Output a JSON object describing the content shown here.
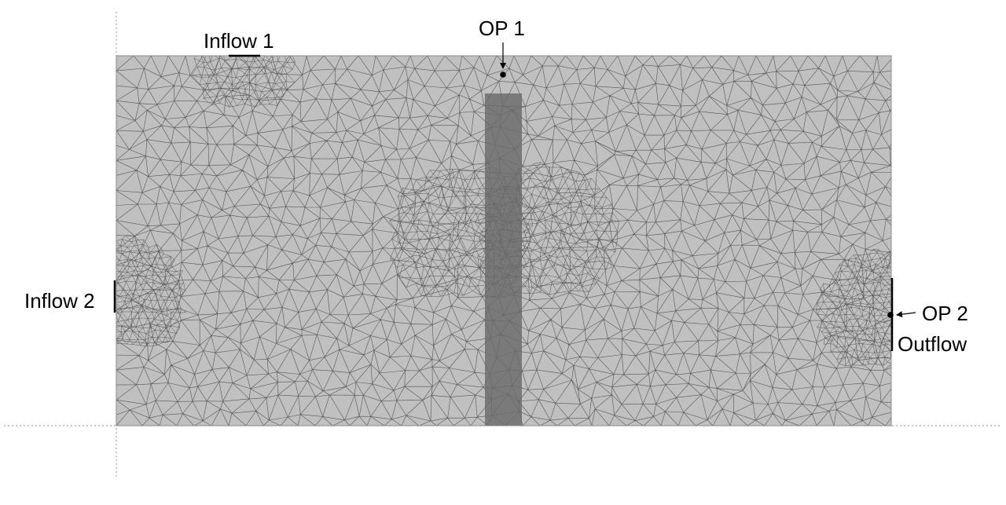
{
  "diagram": {
    "labels": {
      "inflow1": "Inflow 1",
      "inflow2": "Inflow 2",
      "op1": "OP 1",
      "op2": "OP 2",
      "outflow": "Outflow"
    },
    "colors": {
      "background": "#ffffff",
      "domain_fill": "#c0c0c0",
      "mesh_line": "#555555",
      "obstacle_fill": "#6a6a6a",
      "boundary_marker": "#000000",
      "axis_dotted": "#a8a8a8"
    },
    "elements": {
      "mesh": "triangular-mesh",
      "obstacle": "rectangular-obstacle",
      "points": [
        "observation-point-1",
        "observation-point-2"
      ]
    }
  }
}
